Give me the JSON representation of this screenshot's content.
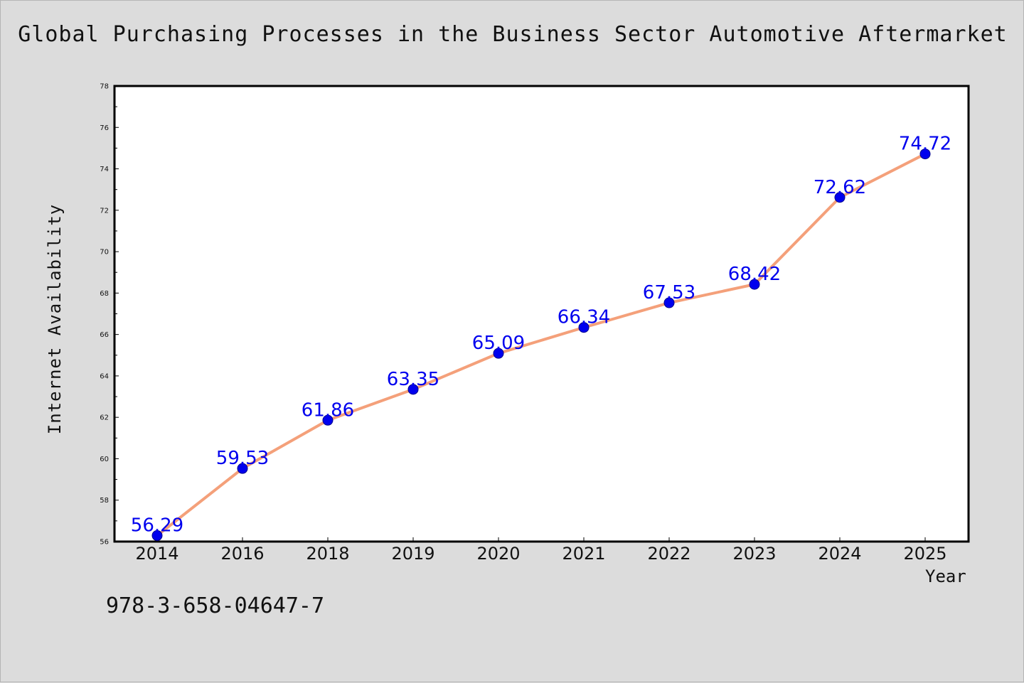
{
  "colors": {
    "background": "#dcdcdc",
    "plot_area": "#ffffff",
    "line": "#f4a07a",
    "marker": "#0000ee",
    "data_label": "#0000ee"
  },
  "chart_data": {
    "type": "line",
    "title": "Global Purchasing Processes in the Business Sector Automotive Aftermarket",
    "xlabel": "Year",
    "ylabel": "Internet Availability",
    "categories": [
      "2014",
      "2016",
      "2018",
      "2019",
      "2020",
      "2021",
      "2022",
      "2023",
      "2024",
      "2025"
    ],
    "series": [
      {
        "values": [
          56.29,
          59.53,
          61.86,
          63.35,
          65.09,
          66.34,
          67.53,
          68.42,
          72.62,
          74.72
        ],
        "value_labels": [
          "56.29",
          "59.53",
          "61.86",
          "63.35",
          "65.09",
          "66.34",
          "67.53",
          "68.42",
          "72.62",
          "74.72"
        ]
      }
    ],
    "ylim": [
      56,
      78
    ],
    "yticks": [
      "56",
      "58",
      "60",
      "62",
      "64",
      "66",
      "68",
      "70",
      "72",
      "74",
      "76",
      "78"
    ],
    "grid": false,
    "legend": "none"
  },
  "footer": {
    "isbn": "978-3-658-04647-7"
  }
}
